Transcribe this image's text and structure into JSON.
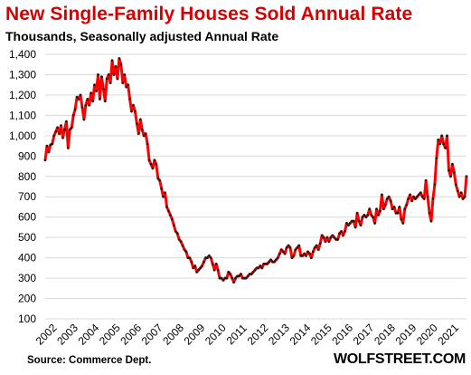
{
  "chart_data": {
    "type": "line",
    "title": "New Single-Family Houses Sold Annual Rate",
    "subtitle": "Thousands, Seasonally adjusted Annual Rate",
    "source": "Source: Commerce Dept.",
    "brand": "WOLFSTREET.COM",
    "xlabel": "",
    "ylabel": "",
    "ylim": [
      100,
      1400
    ],
    "yticks": [
      100,
      200,
      300,
      400,
      500,
      600,
      700,
      800,
      900,
      1000,
      1100,
      1200,
      1300,
      1400
    ],
    "ytick_labels": [
      "100",
      "200",
      "300",
      "400",
      "500",
      "600",
      "700",
      "800",
      "900",
      "1,000",
      "1,100",
      "1,200",
      "1,300",
      "1,400"
    ],
    "xticks": [
      "2002",
      "2003",
      "2004",
      "2005",
      "2006",
      "2007",
      "2008",
      "2009",
      "2010",
      "2011",
      "2012",
      "2013",
      "2014",
      "2015",
      "2016",
      "2017",
      "2018",
      "2019",
      "2020",
      "2021"
    ],
    "grid": true,
    "legend": "none",
    "colors": {
      "title": "#d60000",
      "line": "#ff0000",
      "marker": "#1a1a1a",
      "grid": "#d9d9d9"
    },
    "series": [
      {
        "x_start": "2002-01",
        "frequency": "monthly",
        "values": [
          880,
          950,
          920,
          955,
          960,
          1000,
          1020,
          1040,
          1010,
          1050,
          990,
          1030,
          1070,
          940,
          1030,
          1040,
          1100,
          1130,
          1190,
          1180,
          1200,
          1140,
          1080,
          1150,
          1180,
          1150,
          1210,
          1170,
          1250,
          1220,
          1300,
          1180,
          1290,
          1230,
          1170,
          1280,
          1300,
          1260,
          1370,
          1300,
          1340,
          1280,
          1380,
          1350,
          1260,
          1300,
          1240,
          1250,
          1180,
          1120,
          1150,
          1120,
          1060,
          1010,
          1080,
          1030,
          1000,
          1010,
          960,
          880,
          860,
          840,
          880,
          860,
          790,
          780,
          740,
          700,
          720,
          650,
          630,
          610,
          590,
          560,
          530,
          520,
          490,
          480,
          460,
          440,
          430,
          400,
          400,
          380,
          350,
          360,
          330,
          340,
          350,
          360,
          380,
          400,
          400,
          410,
          400,
          370,
          340,
          370,
          340,
          300,
          300,
          290,
          300,
          300,
          330,
          320,
          300,
          280,
          300,
          310,
          310,
          320,
          300,
          300,
          300,
          310,
          320,
          320,
          330,
          340,
          350,
          350,
          360,
          350,
          370,
          370,
          370,
          380,
          390,
          380,
          380,
          390,
          400,
          420,
          440,
          430,
          420,
          450,
          460,
          450,
          400,
          410,
          440,
          450,
          460,
          410,
          410,
          420,
          410,
          430,
          420,
          400,
          430,
          450,
          460,
          440,
          470,
          510,
          500,
          480,
          500,
          480,
          500,
          510,
          500,
          490,
          490,
          520,
          530,
          510,
          530,
          570,
          560,
          570,
          580,
          580,
          550,
          620,
          580,
          560,
          600,
          610,
          600,
          610,
          640,
          610,
          600,
          570,
          640,
          610,
          630,
          710,
          640,
          660,
          690,
          700,
          680,
          640,
          650,
          620,
          620,
          650,
          590,
          570,
          640,
          660,
          690,
          710,
          680,
          700,
          690,
          700,
          710,
          720,
          700,
          690,
          780,
          700,
          620,
          580,
          690,
          760,
          890,
          980,
          960,
          1000,
          960,
          940,
          1000,
          830,
          800,
          860,
          820,
          760,
          730,
          700,
          720,
          690,
          700,
          800
        ]
      }
    ]
  }
}
